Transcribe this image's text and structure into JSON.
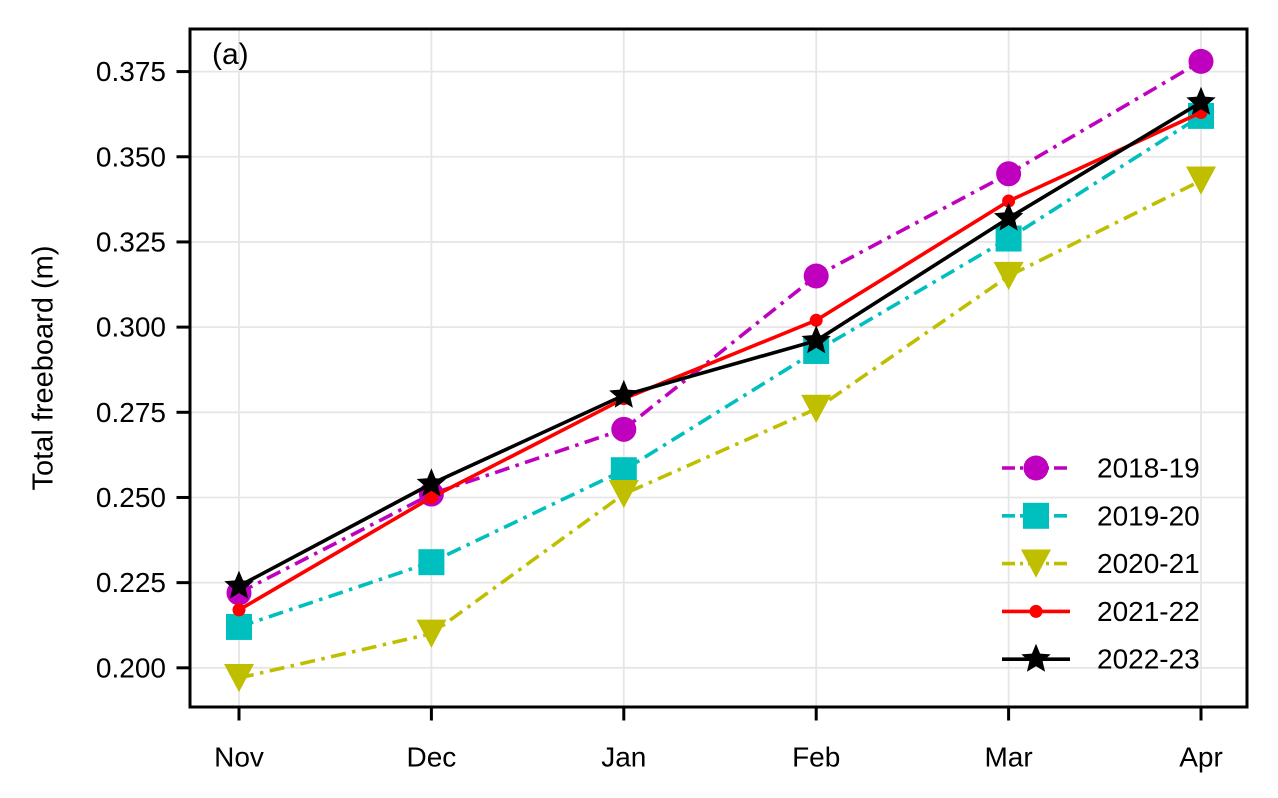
{
  "panel_label": "(a)",
  "chart_data": {
    "type": "line",
    "title": "",
    "xlabel": "",
    "ylabel": "Total freeboard (m)",
    "categories": [
      "Nov",
      "Dec",
      "Jan",
      "Feb",
      "Mar",
      "Apr"
    ],
    "series": [
      {
        "name": "2018-19",
        "color": "#bf00bf",
        "marker": "circle",
        "marker_size": 25,
        "line_style": "dashdot",
        "values": [
          0.222,
          0.251,
          0.27,
          0.315,
          0.345,
          0.378
        ]
      },
      {
        "name": "2019-20",
        "color": "#00bfbf",
        "marker": "square",
        "marker_size": 26,
        "line_style": "dashdot",
        "values": [
          0.212,
          0.231,
          0.258,
          0.293,
          0.326,
          0.362
        ]
      },
      {
        "name": "2020-21",
        "color": "#bfbf00",
        "marker": "triangle-down",
        "marker_size": 30,
        "line_style": "dashdot",
        "values": [
          0.197,
          0.21,
          0.251,
          0.276,
          0.315,
          0.343
        ]
      },
      {
        "name": "2021-22",
        "color": "#ff0000",
        "marker": "circle-small",
        "marker_size": 13,
        "line_style": "solid",
        "values": [
          0.217,
          0.25,
          0.279,
          0.302,
          0.337,
          0.363
        ]
      },
      {
        "name": "2022-23",
        "color": "#000000",
        "marker": "star",
        "marker_size": 31,
        "line_style": "solid",
        "values": [
          0.224,
          0.254,
          0.28,
          0.296,
          0.332,
          0.366
        ]
      }
    ],
    "ylim": [
      0.1885,
      0.3875
    ],
    "yticks": [
      0.2,
      0.225,
      0.25,
      0.275,
      0.3,
      0.325,
      0.35,
      0.375
    ],
    "grid": true,
    "legend_position": "lower right",
    "colors": {
      "grid": "#e6e6e6",
      "spine": "#000000",
      "background": "#ffffff"
    }
  }
}
